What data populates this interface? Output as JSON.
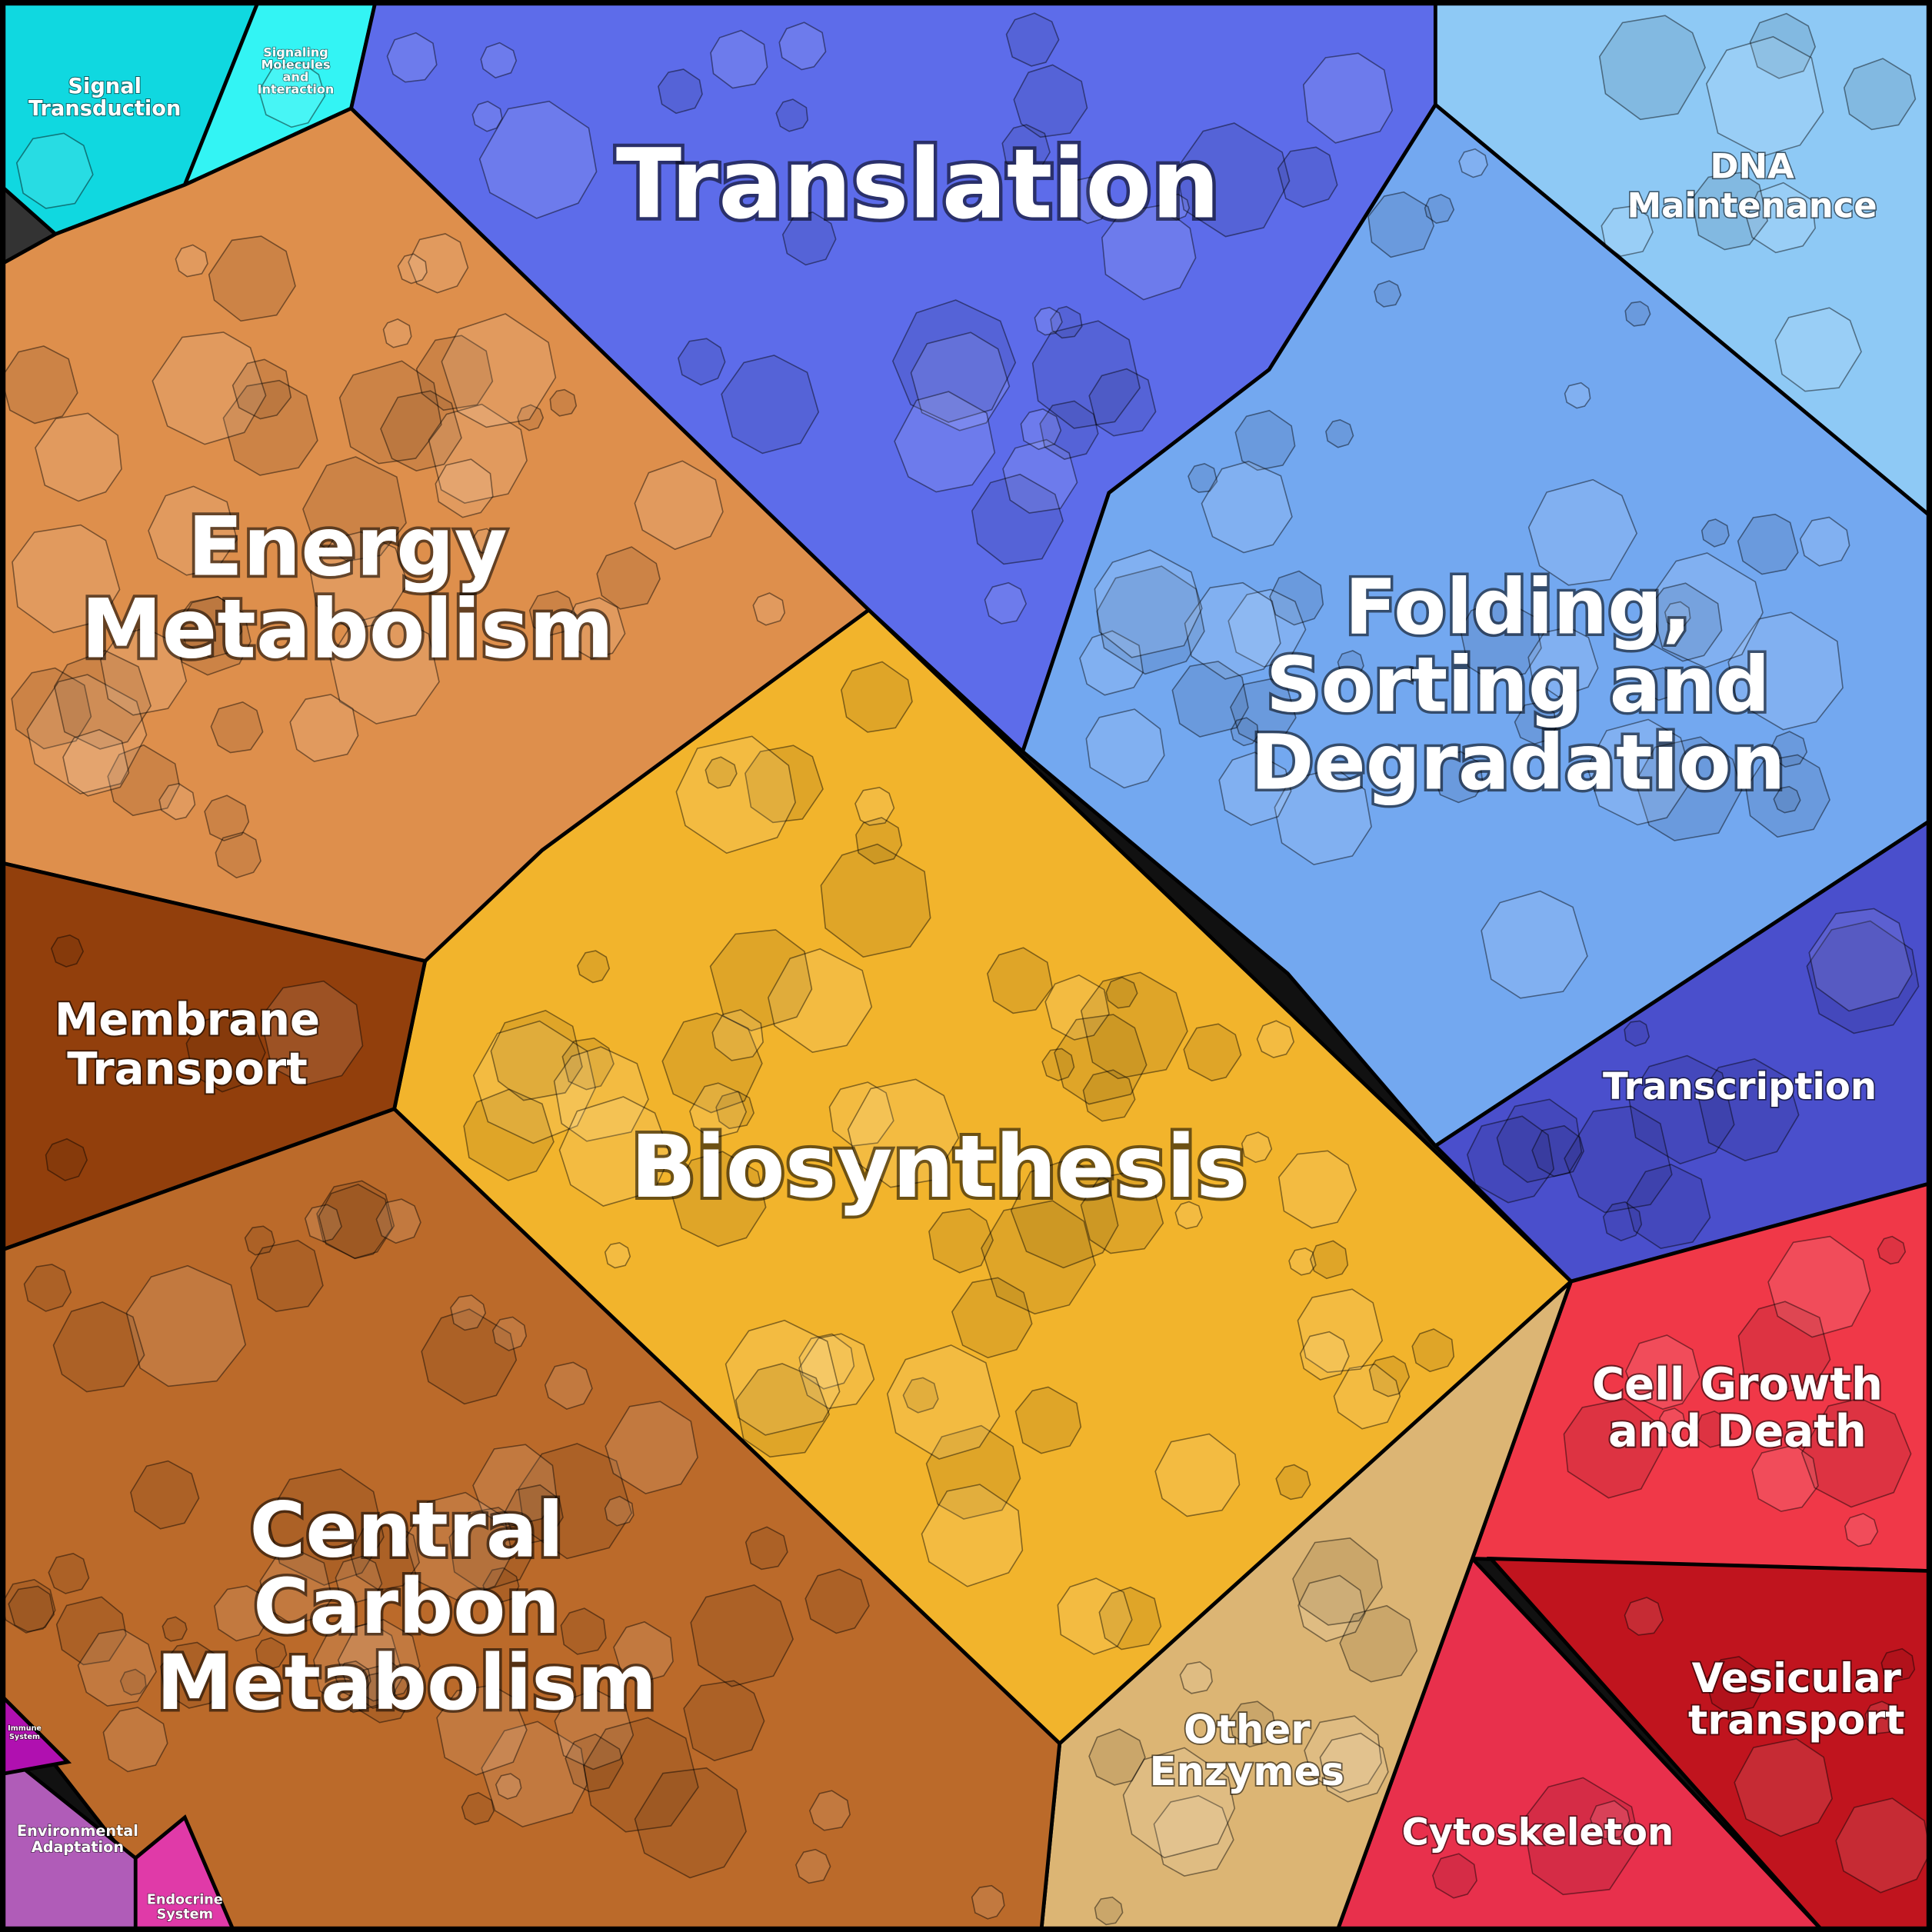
{
  "regions": [
    {
      "label": [
        "Signal",
        "Transduction"
      ]
    },
    {
      "label": [
        "Signaling",
        "Molecules",
        "and",
        "Interaction"
      ]
    },
    {
      "label": [
        "Translation"
      ]
    },
    {
      "label": [
        "DNA",
        "Maintenance"
      ]
    },
    {
      "label": [
        "Folding,",
        "Sorting and",
        "Degradation"
      ]
    },
    {
      "label": [
        "Transcription"
      ]
    },
    {
      "label": [
        "Cell Growth",
        "and Death"
      ]
    },
    {
      "label": [
        "Vesicular",
        "transport"
      ]
    },
    {
      "label": [
        "Cytoskeleton"
      ]
    },
    {
      "label": [
        "Other",
        "Enzymes"
      ]
    },
    {
      "label": [
        "Biosynthesis"
      ]
    },
    {
      "label": [
        "Energy",
        "Metabolism"
      ]
    },
    {
      "label": [
        "Membrane",
        "Transport"
      ]
    },
    {
      "label": [
        "Central",
        "Carbon",
        "Metabolism"
      ]
    },
    {
      "label": [
        "Environmental",
        "Adaptation"
      ]
    },
    {
      "label": [
        "Immune",
        "System"
      ]
    },
    {
      "label": [
        "Endocrine",
        "System"
      ]
    }
  ]
}
